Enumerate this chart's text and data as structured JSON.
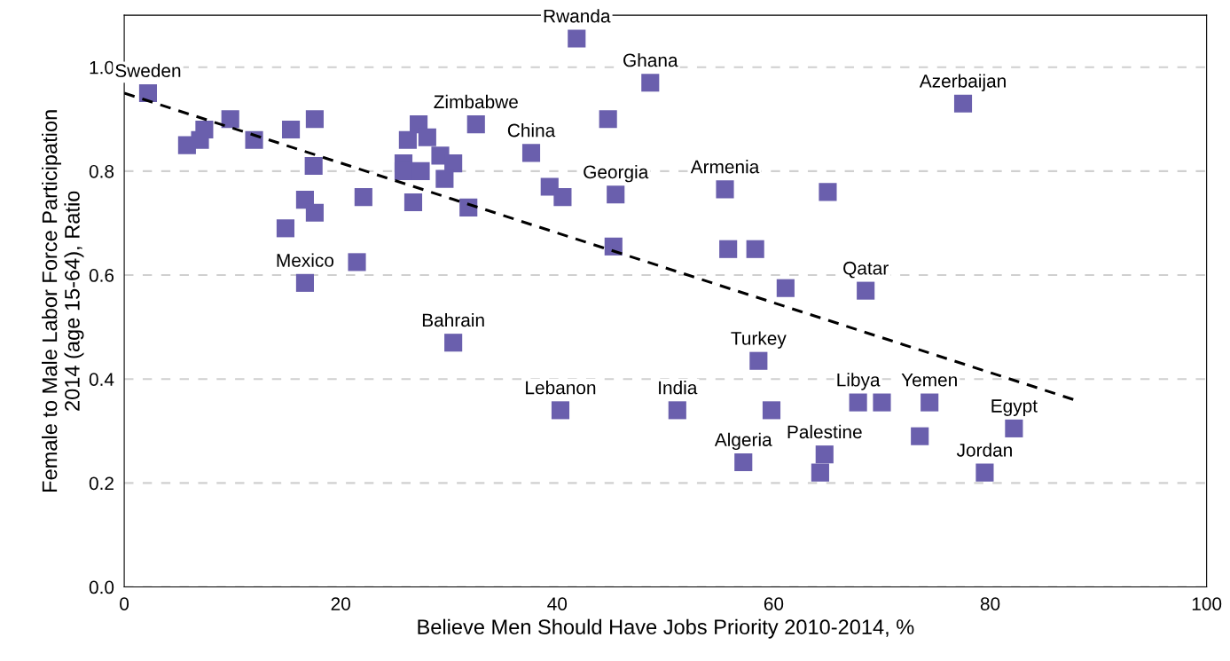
{
  "chart_data": {
    "type": "scatter",
    "xlabel": "Believe Men Should Have Jobs Priority 2010-2014, %",
    "ylabel": "Female to Male Labor Force Participation\n2014 (age 15-64), Ratio",
    "xlim": [
      0,
      100
    ],
    "xticks": [
      0,
      20,
      40,
      60,
      80,
      100
    ],
    "ylim": [
      0,
      1.1
    ],
    "yticks": [
      {
        "value": 0,
        "label": "0.0"
      },
      {
        "value": 0.2,
        "label": "0.2"
      },
      {
        "value": 0.4,
        "label": "0.4"
      },
      {
        "value": 0.6,
        "label": "0.6"
      },
      {
        "value": 0.8,
        "label": "0.8"
      },
      {
        "value": 1.0,
        "label": "1.0"
      }
    ],
    "grid": "y",
    "legend": false,
    "marker": "square",
    "series": [
      {
        "color": "#6a5fad",
        "x": [
          2.2,
          5.8,
          7.0,
          7.4,
          9.8,
          12.0,
          15.4,
          17.6,
          17.5,
          16.7,
          17.6,
          14.9,
          22.1,
          21.5,
          16.7,
          27.2,
          26.2,
          28.0,
          25.8,
          25.8,
          27.4,
          29.2,
          30.4,
          29.6,
          26.7,
          31.8,
          32.5,
          41.8,
          48.6,
          44.7,
          37.6,
          39.3,
          40.5,
          45.4,
          45.2,
          55.5,
          55.8,
          58.3,
          65.0,
          77.5,
          61.1,
          68.5,
          30.4,
          40.3,
          51.1,
          58.6,
          59.8,
          57.2,
          64.7,
          64.3,
          67.8,
          70.0,
          74.4,
          73.5,
          82.2,
          79.5
        ],
        "values": [
          0.95,
          0.85,
          0.86,
          0.88,
          0.9,
          0.86,
          0.88,
          0.9,
          0.81,
          0.745,
          0.72,
          0.69,
          0.75,
          0.625,
          0.585,
          0.89,
          0.86,
          0.865,
          0.815,
          0.8,
          0.8,
          0.83,
          0.815,
          0.785,
          0.74,
          0.73,
          0.89,
          1.055,
          0.97,
          0.9,
          0.835,
          0.77,
          0.75,
          0.755,
          0.655,
          0.765,
          0.65,
          0.65,
          0.76,
          0.93,
          0.575,
          0.57,
          0.47,
          0.34,
          0.34,
          0.435,
          0.34,
          0.24,
          0.255,
          0.22,
          0.355,
          0.355,
          0.355,
          0.29,
          0.305,
          0.22
        ]
      },
      {
        "type": "line",
        "color": "#000000",
        "line_style": "dashed",
        "marker": "none",
        "x": [
          0,
          87.8
        ],
        "values": [
          0.95,
          0.36
        ]
      }
    ],
    "annotations": [
      {
        "text": "Sweden",
        "x": 2.2,
        "y": 0.95
      },
      {
        "text": "Mexico",
        "x": 16.7,
        "y": 0.585
      },
      {
        "text": "Zimbabwe",
        "x": 32.5,
        "y": 0.89
      },
      {
        "text": "Rwanda",
        "x": 41.8,
        "y": 1.055
      },
      {
        "text": "Ghana",
        "x": 48.6,
        "y": 0.97
      },
      {
        "text": "China",
        "x": 37.6,
        "y": 0.835
      },
      {
        "text": "Georgia",
        "x": 45.4,
        "y": 0.755
      },
      {
        "text": "Armenia",
        "x": 55.5,
        "y": 0.765
      },
      {
        "text": "Azerbaijan",
        "x": 77.5,
        "y": 0.93
      },
      {
        "text": "Qatar",
        "x": 68.5,
        "y": 0.57
      },
      {
        "text": "Bahrain",
        "x": 30.4,
        "y": 0.47
      },
      {
        "text": "Lebanon",
        "x": 40.3,
        "y": 0.34
      },
      {
        "text": "India",
        "x": 51.1,
        "y": 0.34
      },
      {
        "text": "Turkey",
        "x": 58.6,
        "y": 0.435
      },
      {
        "text": "Algeria",
        "x": 57.2,
        "y": 0.24
      },
      {
        "text": "Palestine",
        "x": 64.7,
        "y": 0.255
      },
      {
        "text": "Libya",
        "x": 67.8,
        "y": 0.355
      },
      {
        "text": "Yemen",
        "x": 74.4,
        "y": 0.355
      },
      {
        "text": "Egypt",
        "x": 82.2,
        "y": 0.305
      },
      {
        "text": "Jordan",
        "x": 79.5,
        "y": 0.22
      }
    ]
  }
}
